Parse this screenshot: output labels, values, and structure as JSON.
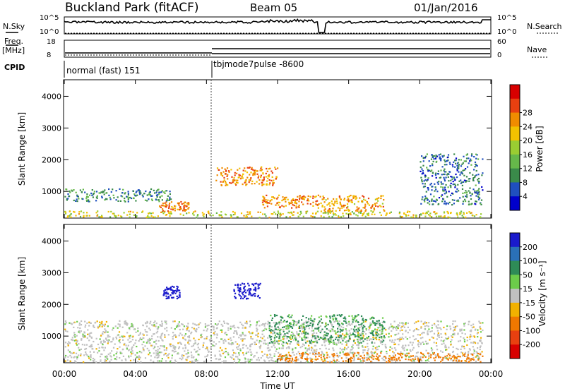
{
  "header": {
    "station": "Buckland Park (fitACF)",
    "beam": "Beam 05",
    "date": "01/Jan/2016"
  },
  "strip_labels": {
    "nsky": "N.Sky",
    "nsky_top": "10^5",
    "nsky_bot": "10^0",
    "nsearch": "N.Search",
    "nsearch_top": "10^5",
    "nsearch_bot": "10^0",
    "freq_l1": "Freq.",
    "freq_l2": "[MHz]",
    "freq_top": "18",
    "freq_bot": "8",
    "nave": "Nave",
    "nave_top": "60",
    "nave_bot": "0",
    "cpid": "CPID",
    "cpid_a": "normal (fast) 151",
    "cpid_b": "tbjmode7pulse -8600"
  },
  "axes": {
    "ylabel": "Slant Range [km]",
    "xlabel": "Time UT",
    "yticks": [
      "1000",
      "2000",
      "3000",
      "4000"
    ],
    "xticks": [
      "00:00",
      "04:00",
      "08:00",
      "12:00",
      "16:00",
      "20:00",
      "00:00"
    ]
  },
  "chart_data": [
    {
      "type": "heatmap",
      "name": "power",
      "x_range": [
        "00:00",
        "24:00"
      ],
      "y_range_km": [
        180,
        4500
      ],
      "colorbar": {
        "label": "Power [dB]",
        "ticks": [
          4,
          8,
          12,
          16,
          20,
          24,
          28
        ],
        "colors": [
          "#0000cc",
          "#1f4fbf",
          "#3a8a4a",
          "#66b84a",
          "#9acd32",
          "#f2c200",
          "#f08c00",
          "#e84010",
          "#d80000"
        ]
      },
      "features": [
        {
          "region": "ground scatter band",
          "time": [
            "00:00",
            "23:30"
          ],
          "range_km": [
            200,
            400
          ],
          "power_db": 20
        },
        {
          "region": "lower band",
          "time": [
            "00:00",
            "06:00"
          ],
          "range_km": [
            700,
            1100
          ],
          "power_db": 10
        },
        {
          "region": "bright patch",
          "time": [
            "05:20",
            "07:00"
          ],
          "range_km": [
            400,
            700
          ],
          "power_db": 26
        },
        {
          "region": "strong echoes",
          "time": [
            "08:30",
            "12:00"
          ],
          "range_km": [
            1200,
            1800
          ],
          "power_db": 26
        },
        {
          "region": "strong echoes",
          "time": [
            "11:00",
            "14:30"
          ],
          "range_km": [
            500,
            900
          ],
          "power_db": 26
        },
        {
          "region": "strong echoes",
          "time": [
            "14:30",
            "18:00"
          ],
          "range_km": [
            400,
            900
          ],
          "power_db": 24
        },
        {
          "region": "diagonal bands",
          "time": [
            "20:00",
            "23:30"
          ],
          "range_km": [
            600,
            2200
          ],
          "power_db": 8
        }
      ]
    },
    {
      "type": "heatmap",
      "name": "velocity",
      "x_range": [
        "00:00",
        "24:00"
      ],
      "y_range_km": [
        180,
        4500
      ],
      "colorbar": {
        "label": "Velocity [m s⁻¹]",
        "ticks": [
          200,
          100,
          50,
          15,
          -15,
          -50,
          -100,
          -200
        ],
        "colors": [
          "#1a1acc",
          "#2a70b8",
          "#2e8b57",
          "#6ccc4a",
          "#c0c0c0",
          "#f2b100",
          "#f07800",
          "#e84010",
          "#d80000"
        ]
      },
      "features": [
        {
          "region": "ground scatter (grey)",
          "time": [
            "00:00",
            "23:30"
          ],
          "range_km": [
            200,
            1500
          ],
          "velocity": 0
        },
        {
          "region": "positive velocity patch",
          "time": [
            "09:30",
            "11:00"
          ],
          "range_km": [
            2200,
            2700
          ],
          "velocity": 200
        },
        {
          "region": "positive velocity patch",
          "time": [
            "05:30",
            "06:30"
          ],
          "range_km": [
            2200,
            2600
          ],
          "velocity": 200
        },
        {
          "region": "negative velocity band",
          "time": [
            "12:00",
            "23:30"
          ],
          "range_km": [
            200,
            500
          ],
          "velocity": -50
        },
        {
          "region": "positive echoes",
          "time": [
            "11:30",
            "18:00"
          ],
          "range_km": [
            800,
            1700
          ],
          "velocity": 40
        }
      ]
    }
  ]
}
